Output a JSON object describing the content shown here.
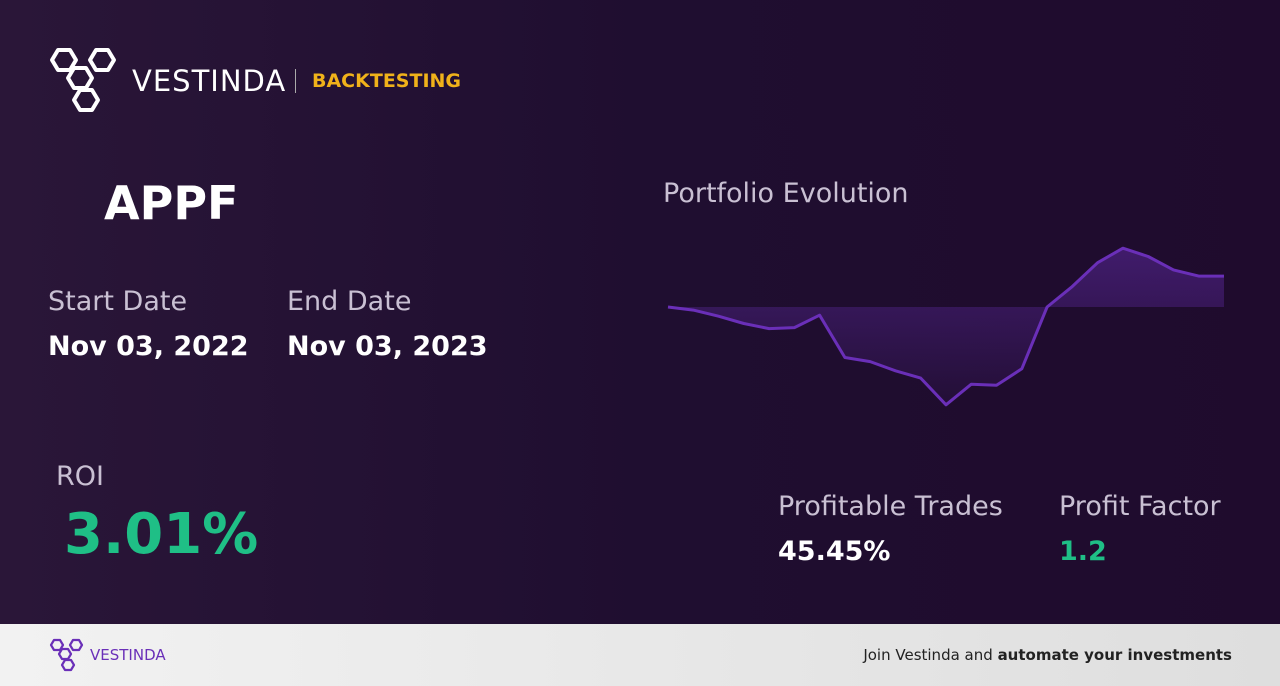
{
  "brand": {
    "name": "VESTINDA",
    "section": "BACKTESTING"
  },
  "ticker": "APPF",
  "start_date": {
    "label": "Start Date",
    "value": "Nov 03, 2022"
  },
  "end_date": {
    "label": "End Date",
    "value": "Nov 03, 2023"
  },
  "roi": {
    "label": "ROI",
    "value": "3.01%"
  },
  "profitable_trades": {
    "label": "Profitable Trades",
    "value": "45.45%"
  },
  "profit_factor": {
    "label": "Profit Factor",
    "value": "1.2"
  },
  "chart_data": {
    "type": "line",
    "title": "Portfolio Evolution",
    "color": "#6a2fb8",
    "values": [
      0,
      -0.3,
      -0.9,
      -1.6,
      -2.1,
      -2.0,
      -0.8,
      -4.9,
      -5.3,
      -6.2,
      -6.9,
      -9.5,
      -7.5,
      -7.6,
      -6.0,
      0.0,
      2.0,
      4.3,
      5.7,
      4.9,
      3.6,
      3.0,
      3.0
    ],
    "ylim": [
      -10,
      6.5
    ]
  },
  "footer": {
    "brand": "VESTINDA",
    "text": "Join Vestinda and",
    "bold": "automate your investments"
  }
}
